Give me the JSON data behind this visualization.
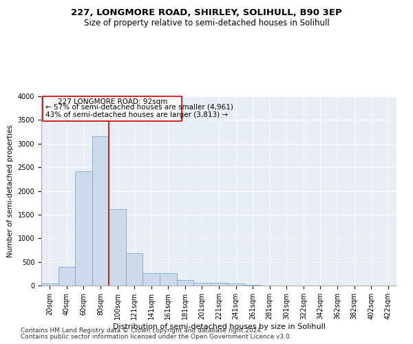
{
  "title1": "227, LONGMORE ROAD, SHIRLEY, SOLIHULL, B90 3EP",
  "title2": "Size of property relative to semi-detached houses in Solihull",
  "xlabel": "Distribution of semi-detached houses by size in Solihull",
  "ylabel": "Number of semi-detached properties",
  "footnote1": "Contains HM Land Registry data © Crown copyright and database right 2024.",
  "footnote2": "Contains public sector information licensed under the Open Government Licence v3.0.",
  "annotation_line1": "227 LONGMORE ROAD: 92sqm",
  "annotation_line2": "← 57% of semi-detached houses are smaller (4,961)",
  "annotation_line3": "43% of semi-detached houses are larger (3,813) →",
  "bar_color": "#ccdaeb",
  "bar_edge_color": "#7aaac8",
  "marker_color": "#cc0000",
  "plot_bg_color": "#e8eef5",
  "ylim": [
    0,
    4000
  ],
  "yticks": [
    0,
    500,
    1000,
    1500,
    2000,
    2500,
    3000,
    3500,
    4000
  ],
  "categories": [
    "20sqm",
    "40sqm",
    "60sqm",
    "80sqm",
    "100sqm",
    "121sqm",
    "141sqm",
    "161sqm",
    "181sqm",
    "201sqm",
    "221sqm",
    "241sqm",
    "261sqm",
    "281sqm",
    "301sqm",
    "322sqm",
    "342sqm",
    "362sqm",
    "382sqm",
    "402sqm",
    "422sqm"
  ],
  "values": [
    50,
    390,
    2420,
    3150,
    1620,
    680,
    265,
    265,
    120,
    65,
    55,
    50,
    10,
    5,
    0,
    0,
    0,
    0,
    0,
    0,
    0
  ],
  "red_line_after_bin": 3,
  "title1_fontsize": 9.5,
  "title2_fontsize": 8.5,
  "annotation_fontsize": 7.5,
  "tick_fontsize": 7,
  "xlabel_fontsize": 8,
  "ylabel_fontsize": 7.5,
  "footnote_fontsize": 6.5
}
